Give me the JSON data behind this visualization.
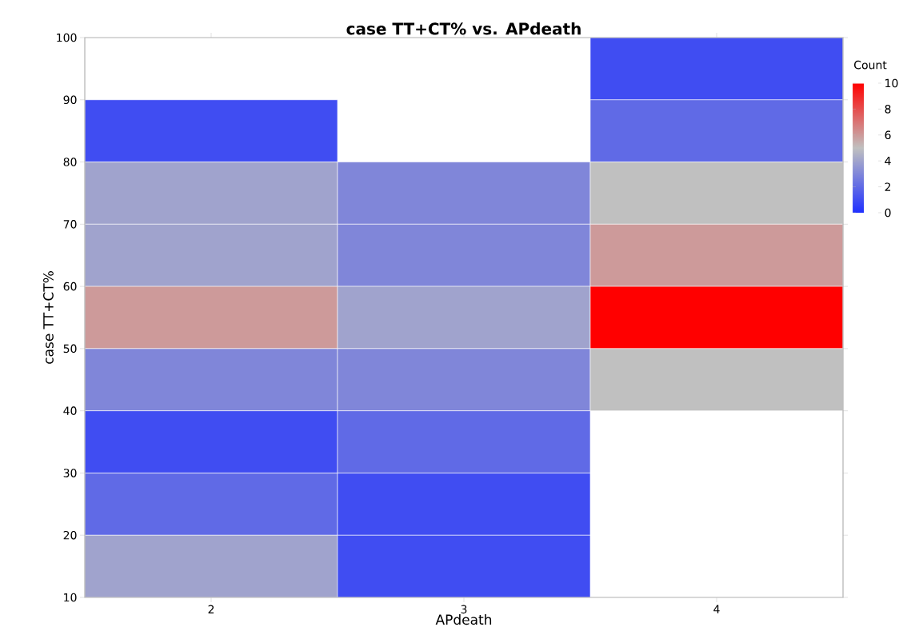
{
  "chart_data": {
    "type": "heatmap",
    "title": "case TT+CT% vs. APdeath",
    "xlabel": "APdeath",
    "ylabel": "case TT+CT%",
    "clabel": "Count",
    "categories": [
      "2",
      "3",
      "4"
    ],
    "ylim": [
      10,
      100
    ],
    "yticks": [
      10,
      20,
      30,
      40,
      50,
      60,
      70,
      80,
      90,
      100
    ],
    "cells": [
      [
        null,
        null,
        1
      ],
      [
        1,
        null,
        2
      ],
      [
        4,
        3,
        5
      ],
      [
        4,
        3,
        6
      ],
      [
        6,
        4,
        10
      ],
      [
        3,
        3,
        5
      ],
      [
        1,
        2,
        null
      ],
      [
        2,
        1,
        null
      ],
      [
        4,
        1,
        null
      ]
    ],
    "clim": [
      0,
      10
    ],
    "cticks": [
      0,
      2,
      4,
      6,
      8,
      10
    ]
  }
}
